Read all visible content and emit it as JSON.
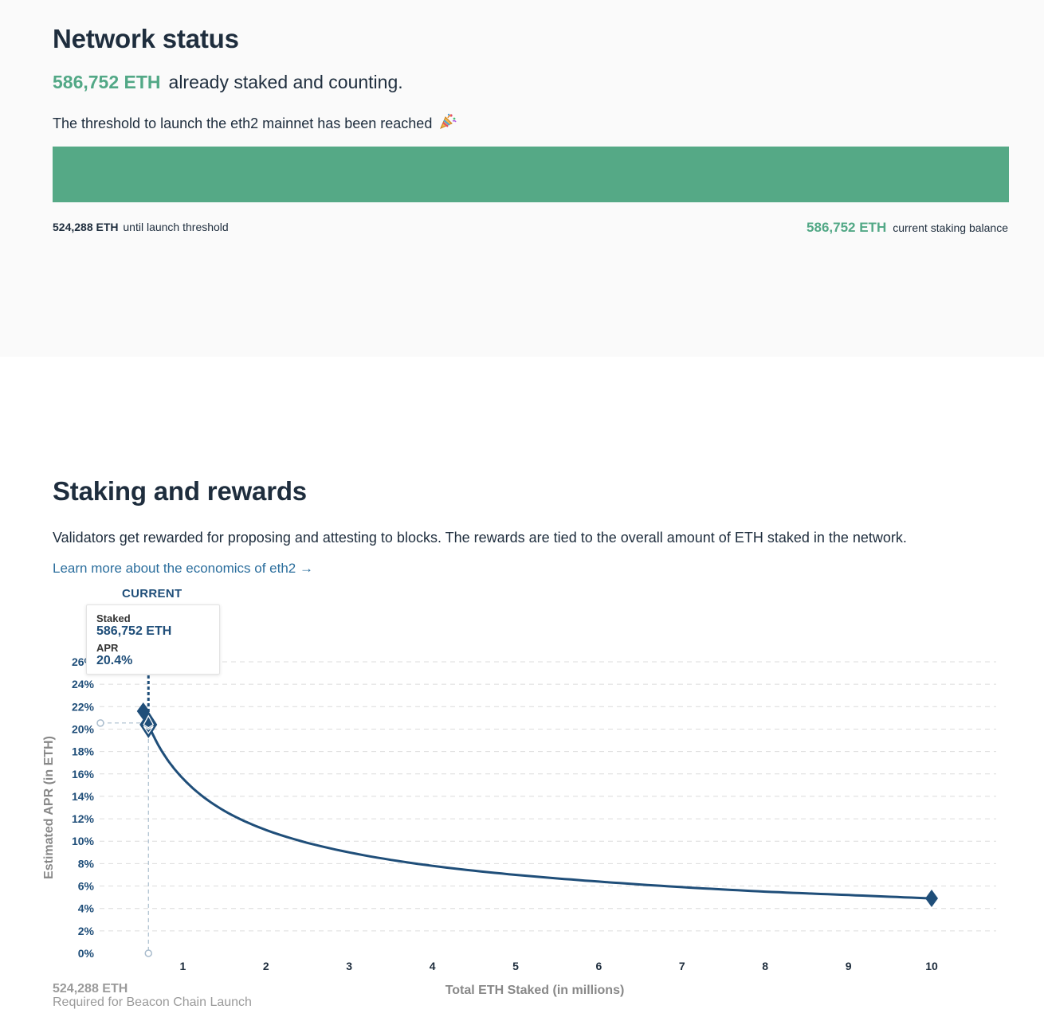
{
  "network": {
    "title": "Network status",
    "staked_amount": "586,752 ETH",
    "staked_suffix": "already staked and counting.",
    "threshold_message": "The threshold to launch the eth2 mainnet has been reached",
    "threshold_emoji": "party-popper-icon",
    "progress_fraction": 1.0,
    "threshold_amount": "524,288 ETH",
    "threshold_suffix": "until launch threshold",
    "balance_amount": "586,752 ETH",
    "balance_suffix": "current staking balance",
    "colors": {
      "accent": "#55a986",
      "bar_bg": "#e6e6e6"
    }
  },
  "rewards": {
    "title": "Staking and rewards",
    "description": "Validators get rewarded for proposing and attesting to blocks. The rewards are tied to the overall amount of ETH staked in the network.",
    "learn_more": "Learn more about the economics of eth2 →",
    "current_label": "CURRENT",
    "tooltip": {
      "staked_label": "Staked",
      "staked_value": "586,752 ETH",
      "apr_label": "APR",
      "apr_value": "20.4%"
    },
    "launch_amount": "524,288 ETH",
    "launch_caption": "Required for Beacon Chain Launch"
  },
  "chart_data": {
    "type": "line",
    "title": "",
    "xlabel": "Total ETH Staked  (in millions)",
    "ylabel": "Estimated APR (in ETH)",
    "x_ticks": [
      1,
      2,
      3,
      4,
      5,
      6,
      7,
      8,
      9,
      10
    ],
    "y_ticks": [
      "0%",
      "2%",
      "4%",
      "6%",
      "8%",
      "10%",
      "12%",
      "14%",
      "16%",
      "18%",
      "20%",
      "22%",
      "24%",
      "26%"
    ],
    "xlim": [
      0,
      10.5
    ],
    "ylim": [
      0,
      26
    ],
    "grid": "horizontal-dashed",
    "curve": "apr = 15.6 / sqrt(x_millions)",
    "series": [
      {
        "x": [
          0.524288,
          0.586752,
          0.75,
          1,
          1.5,
          2,
          3,
          4,
          5,
          6,
          7,
          8,
          9,
          10
        ],
        "y": [
          21.6,
          20.4,
          18.0,
          15.6,
          12.7,
          11.0,
          9.0,
          7.8,
          7.0,
          6.4,
          5.9,
          5.5,
          5.2,
          4.9
        ]
      }
    ],
    "markers": [
      {
        "name": "launch",
        "x": 0.524288,
        "y": 21.6
      },
      {
        "name": "current",
        "x": 0.586752,
        "y": 20.4
      },
      {
        "name": "max",
        "x": 10,
        "y": 4.9
      }
    ],
    "colors": {
      "line": "#1f4e79",
      "grid": "#dcdcdc",
      "guide": "#a9bccd"
    }
  }
}
